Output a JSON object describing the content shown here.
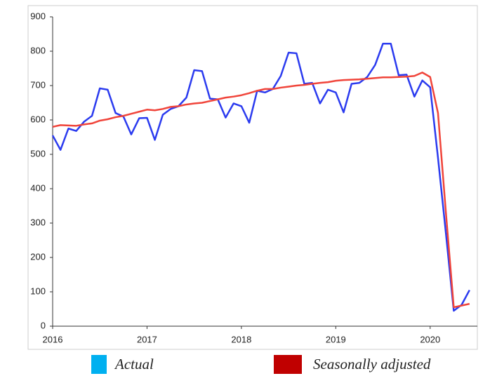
{
  "chart_data": {
    "type": "line",
    "x": [
      2016,
      2016.083,
      2016.167,
      2016.25,
      2016.333,
      2016.417,
      2016.5,
      2016.583,
      2016.667,
      2016.75,
      2016.833,
      2016.917,
      2017,
      2017.083,
      2017.167,
      2017.25,
      2017.333,
      2017.417,
      2017.5,
      2017.583,
      2017.667,
      2017.75,
      2017.833,
      2017.917,
      2018,
      2018.083,
      2018.167,
      2018.25,
      2018.333,
      2018.417,
      2018.5,
      2018.583,
      2018.667,
      2018.75,
      2018.833,
      2018.917,
      2019,
      2019.083,
      2019.167,
      2019.25,
      2019.333,
      2019.417,
      2019.5,
      2019.583,
      2019.667,
      2019.75,
      2019.833,
      2019.917,
      2020,
      2020.083,
      2020.167,
      2020.25,
      2020.333,
      2020.417
    ],
    "series": [
      {
        "name": "Actual",
        "color": "#2b3bef",
        "legend_color": "#00b0f0",
        "values": [
          555,
          513,
          575,
          568,
          595,
          612,
          692,
          688,
          620,
          610,
          558,
          605,
          606,
          542,
          615,
          632,
          640,
          665,
          745,
          742,
          662,
          660,
          607,
          648,
          640,
          592,
          685,
          680,
          690,
          728,
          796,
          794,
          705,
          708,
          648,
          688,
          680,
          622,
          705,
          708,
          725,
          760,
          822,
          822,
          730,
          732,
          668,
          715,
          695,
          490,
          270,
          45,
          62,
          105
        ]
      },
      {
        "name": "Seasonally adjusted",
        "color": "#f0443a",
        "legend_color": "#c00000",
        "values": [
          580,
          585,
          584,
          583,
          587,
          590,
          598,
          602,
          608,
          612,
          618,
          624,
          630,
          628,
          632,
          638,
          640,
          645,
          648,
          650,
          655,
          660,
          665,
          668,
          672,
          678,
          685,
          690,
          690,
          694,
          697,
          700,
          702,
          705,
          708,
          710,
          714,
          716,
          717,
          718,
          720,
          722,
          724,
          724,
          725,
          726,
          728,
          738,
          725,
          620,
          330,
          55,
          60,
          65
        ]
      }
    ],
    "xlim": [
      2016,
      2020.5
    ],
    "xticks": [
      2016,
      2017,
      2018,
      2019,
      2020
    ],
    "ylim": [
      0,
      900
    ],
    "yticks": [
      0,
      100,
      200,
      300,
      400,
      500,
      600,
      700,
      800,
      900
    ],
    "grid": false
  }
}
